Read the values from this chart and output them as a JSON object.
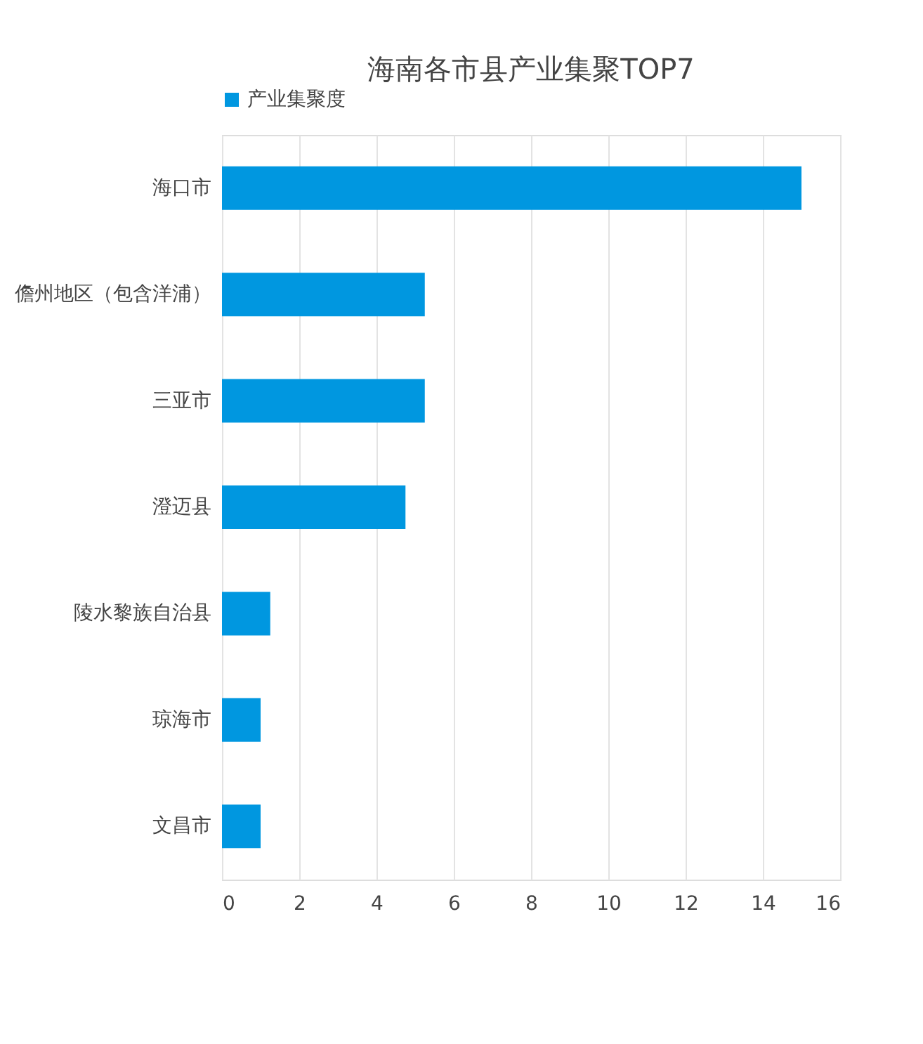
{
  "chart_data": {
    "type": "bar",
    "orientation": "horizontal",
    "title": "海南各市县产业集聚TOP7",
    "categories": [
      "海口市",
      "儋州地区（包含洋浦）",
      "三亚市",
      "澄迈县",
      "陵水黎族自治县",
      "琼海市",
      "文昌市"
    ],
    "series": [
      {
        "name": "产业集聚度",
        "color": "#0097e0",
        "values": [
          15,
          5.25,
          5.25,
          4.75,
          1.25,
          1.0,
          1.0
        ]
      }
    ],
    "xlim": [
      0,
      16
    ],
    "xticks": [
      0,
      2,
      4,
      6,
      8,
      10,
      12,
      14,
      16
    ],
    "grid": "x",
    "legend": "top"
  }
}
